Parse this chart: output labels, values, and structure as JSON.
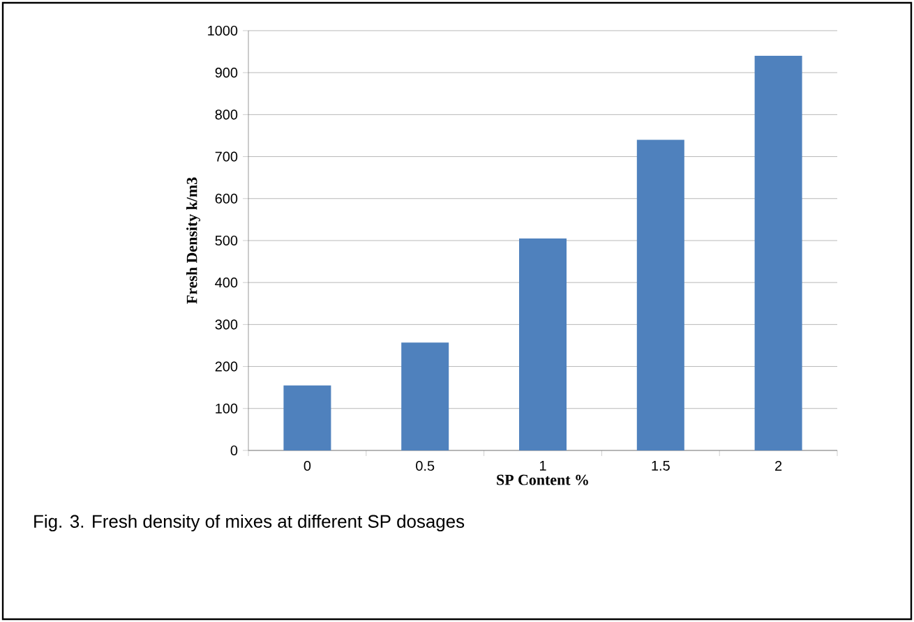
{
  "chart_data": {
    "type": "bar",
    "xlabel": "SP Content %",
    "ylabel": "Fresh Density k/m3",
    "categories": [
      "0",
      "0.5",
      "1",
      "1.5",
      "2"
    ],
    "values": [
      155,
      257,
      505,
      740,
      940
    ],
    "color": "#4f81bd",
    "ylim": [
      0,
      1000
    ],
    "yticks": [
      0,
      100,
      200,
      300,
      400,
      500,
      600,
      700,
      800,
      900,
      1000
    ],
    "grid": "y",
    "annotations": [
      "Fig. 3. Fresh density of mixes at different SP dosages"
    ]
  }
}
